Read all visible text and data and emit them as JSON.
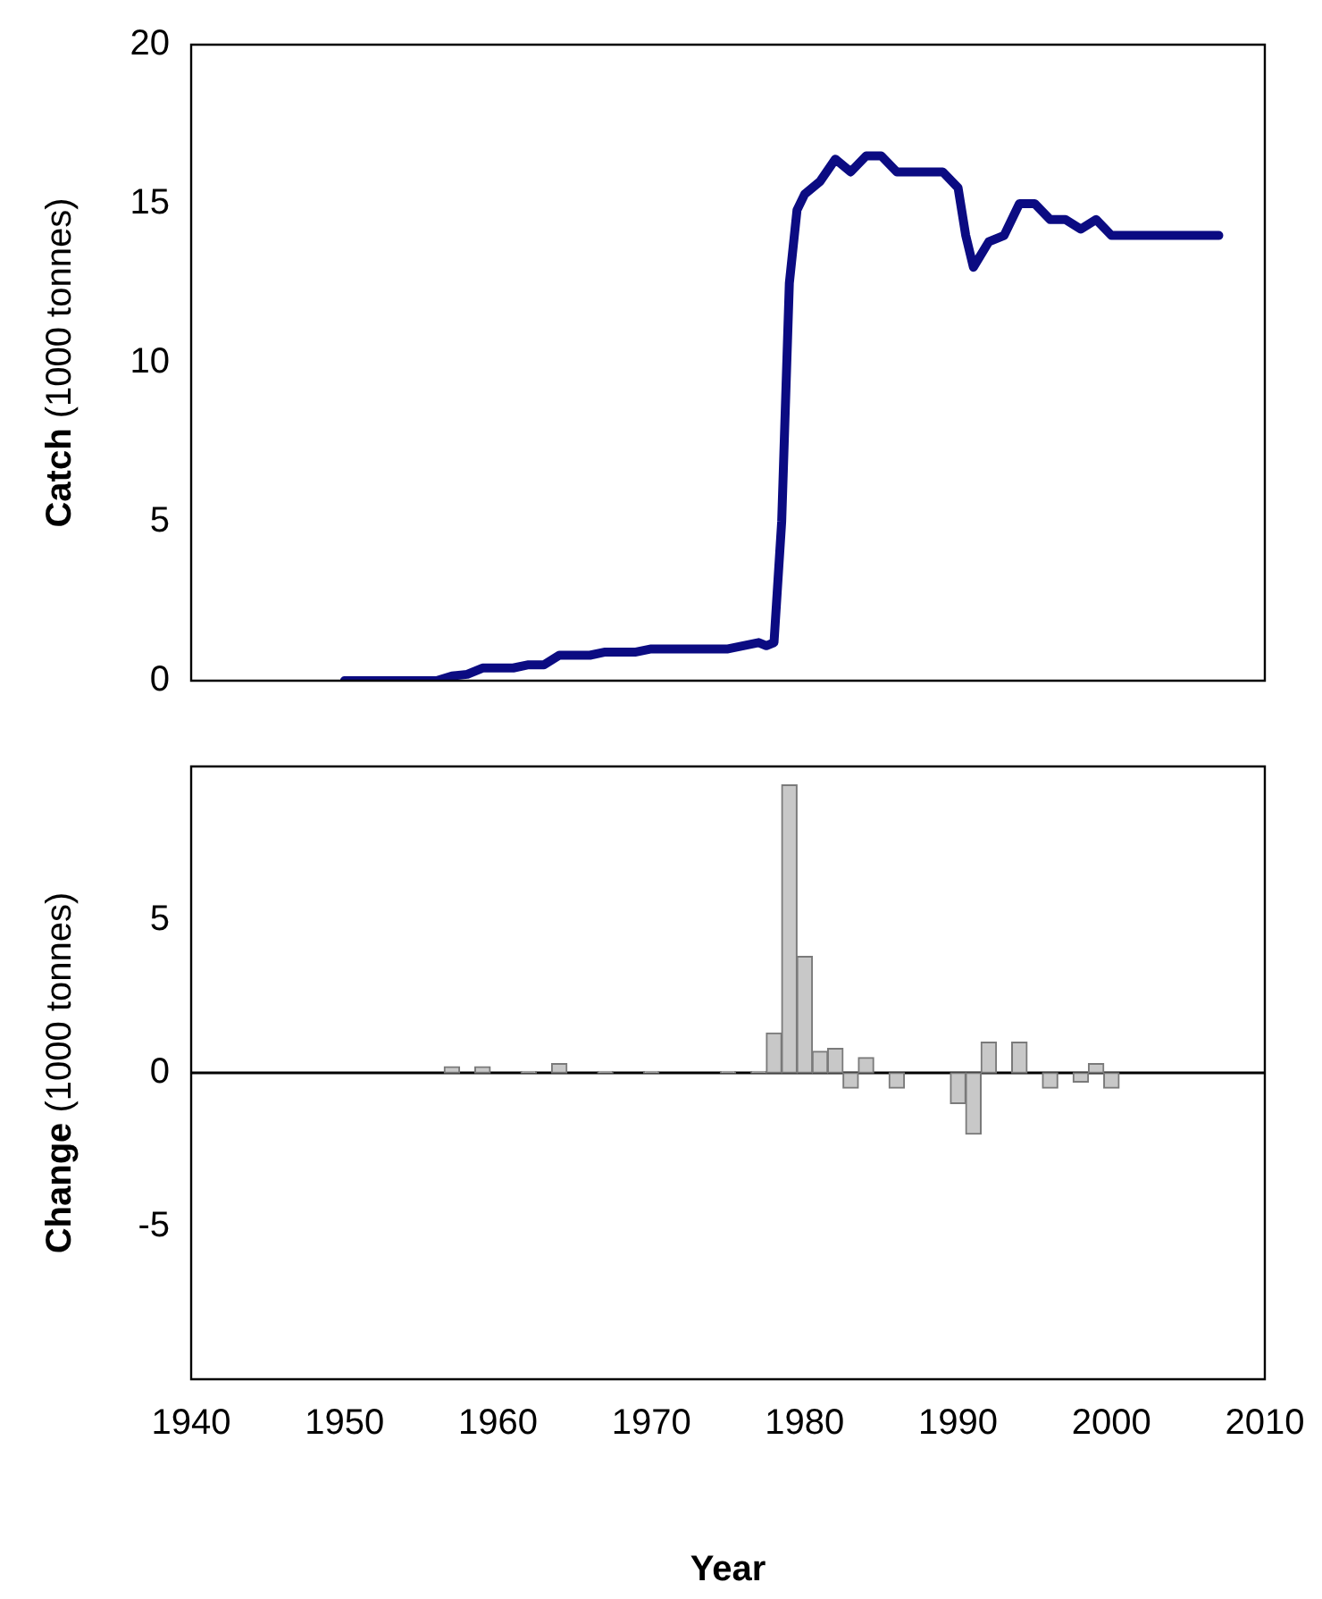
{
  "chart_data": [
    {
      "type": "line",
      "ylabel": "Catch (1000 tonnes)",
      "xlim": [
        1940,
        2010
      ],
      "ylim": [
        0,
        20
      ],
      "yticks": [
        0,
        5,
        10,
        15,
        20
      ],
      "tick_labels": "y",
      "grid": false,
      "legend": false,
      "marker": "none",
      "line_style": "solid",
      "series": [
        {
          "color": "#0b0b82",
          "x": [
            1950,
            1956,
            1957,
            1958,
            1959,
            1961,
            1962,
            1963,
            1964,
            1965,
            1966,
            1967,
            1969,
            1970,
            1975,
            1976,
            1977,
            1977.5,
            1978,
            1978.5,
            1979,
            1979.5,
            1980,
            1981,
            1982,
            1983,
            1984,
            1985,
            1986,
            1988,
            1989,
            1990,
            1990.5,
            1991,
            1992,
            1993,
            1994,
            1995,
            1996,
            1997,
            1998,
            1999,
            2000,
            2007
          ],
          "values": [
            0,
            0,
            0.15,
            0.2,
            0.4,
            0.4,
            0.5,
            0.5,
            0.8,
            0.8,
            0.8,
            0.9,
            0.9,
            1.0,
            1.0,
            1.1,
            1.2,
            1.1,
            1.2,
            5,
            12.5,
            14.8,
            15.3,
            15.7,
            16.4,
            16.0,
            16.5,
            16.5,
            16.0,
            16.0,
            16.0,
            15.5,
            14,
            13.0,
            13.8,
            14.0,
            15.0,
            15.0,
            14.5,
            14.5,
            14.2,
            14.5,
            14.0,
            14.0
          ]
        }
      ]
    },
    {
      "type": "bar",
      "xlabel": "Year",
      "ylabel": "Change (1000 tonnes)",
      "xlim": [
        1940,
        2010
      ],
      "xticks": [
        1940,
        1950,
        1960,
        1970,
        1980,
        1990,
        2000,
        2010
      ],
      "ylim": [
        -10,
        10
      ],
      "yticks": [
        -5,
        0,
        5
      ],
      "grid": false,
      "legend": false,
      "ref_lines": [
        {
          "axis": "y",
          "value": 0,
          "color": "#000000"
        }
      ],
      "x": [
        1957,
        1959,
        1962,
        1964,
        1967,
        1970,
        1975,
        1977,
        1978,
        1979,
        1980,
        1981,
        1982,
        1983,
        1984,
        1986,
        1990,
        1991,
        1992,
        1994,
        1996,
        1998,
        1999,
        2000
      ],
      "series": [
        {
          "color": "#c8c8c8",
          "values": [
            0.2,
            0.2,
            0.05,
            0.3,
            0.05,
            0.05,
            0.05,
            0.05,
            1.3,
            9.4,
            3.8,
            0.7,
            0.8,
            -0.5,
            0.5,
            -0.5,
            -1.0,
            -2.0,
            1.0,
            1.0,
            -0.5,
            -0.3,
            0.3,
            -0.5
          ]
        }
      ]
    }
  ]
}
